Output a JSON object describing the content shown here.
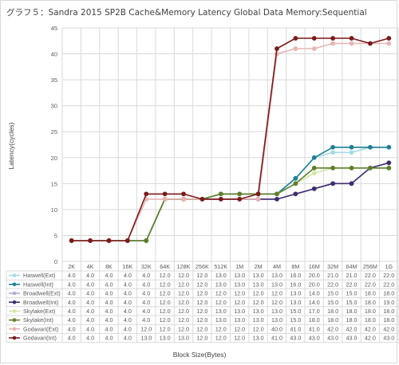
{
  "chart_data": {
    "type": "line",
    "title": "グラフ５：Sandra 2015 SP2B Cache&Memory Latency Global Data Memory:Sequential",
    "xlabel": "Block Size(Bytes)",
    "ylabel": "Latency(cycles)",
    "ylim": [
      0,
      45
    ],
    "y_ticks": [
      0,
      5,
      10,
      15,
      20,
      25,
      30,
      35,
      40,
      45
    ],
    "grid": true,
    "legend": "data-table",
    "categories": [
      "2K",
      "4K",
      "8K",
      "16K",
      "32K",
      "64K",
      "128K",
      "256K",
      "512K",
      "1M",
      "2M",
      "4M",
      "8M",
      "16M",
      "32M",
      "64M",
      "256M",
      "1G"
    ],
    "series": [
      {
        "name": "Haswell(Ext)",
        "color": "#a7dbe6",
        "values": [
          4.0,
          4.0,
          4.0,
          4.0,
          4.0,
          12.0,
          12.0,
          12.0,
          13.0,
          13.0,
          13.0,
          13.0,
          16.0,
          20.0,
          21.0,
          21.0,
          22.0,
          22.0
        ]
      },
      {
        "name": "Haswell(Int)",
        "color": "#1f7f93",
        "values": [
          4.0,
          4.0,
          4.0,
          4.0,
          4.0,
          12.0,
          12.0,
          12.0,
          13.0,
          13.0,
          13.0,
          13.0,
          16.0,
          20.0,
          22.0,
          22.0,
          22.0,
          22.0
        ]
      },
      {
        "name": "Broadwell(Ext)",
        "color": "#b6a8d6",
        "values": [
          4.0,
          4.0,
          4.0,
          4.0,
          4.0,
          12.0,
          12.0,
          12.0,
          12.0,
          12.0,
          12.0,
          12.0,
          13.0,
          14.0,
          15.0,
          15.0,
          18.0,
          18.0
        ]
      },
      {
        "name": "Broadwell(Int)",
        "color": "#3f2f6e",
        "values": [
          4.0,
          4.0,
          4.0,
          4.0,
          4.0,
          12.0,
          12.0,
          12.0,
          12.0,
          12.0,
          12.0,
          12.0,
          13.0,
          14.0,
          15.0,
          15.0,
          18.0,
          19.0
        ]
      },
      {
        "name": "Skylake(Ext)",
        "color": "#d3e8a7",
        "values": [
          4.0,
          4.0,
          4.0,
          4.0,
          4.0,
          12.0,
          12.0,
          12.0,
          13.0,
          13.0,
          13.0,
          13.0,
          15.0,
          17.0,
          18.0,
          18.0,
          18.0,
          18.0
        ]
      },
      {
        "name": "Skylake(Int)",
        "color": "#5e7f2a",
        "values": [
          4.0,
          4.0,
          4.0,
          4.0,
          4.0,
          12.0,
          12.0,
          12.0,
          13.0,
          13.0,
          13.0,
          13.0,
          15.0,
          18.0,
          18.0,
          18.0,
          18.0,
          18.0
        ]
      },
      {
        "name": "Godavari(Ext)",
        "color": "#e8b4b4",
        "values": [
          4.0,
          4.0,
          4.0,
          4.0,
          12.0,
          12.0,
          12.0,
          12.0,
          12.0,
          12.0,
          12.0,
          40.0,
          41.0,
          41.0,
          42.0,
          42.0,
          42.0,
          42.0
        ]
      },
      {
        "name": "Godavari(Int)",
        "color": "#7b1a1a",
        "values": [
          4.0,
          4.0,
          4.0,
          4.0,
          13.0,
          13.0,
          13.0,
          12.0,
          12.0,
          12.0,
          13.0,
          41.0,
          43.0,
          43.0,
          43.0,
          43.0,
          42.0,
          43.0
        ]
      }
    ]
  }
}
